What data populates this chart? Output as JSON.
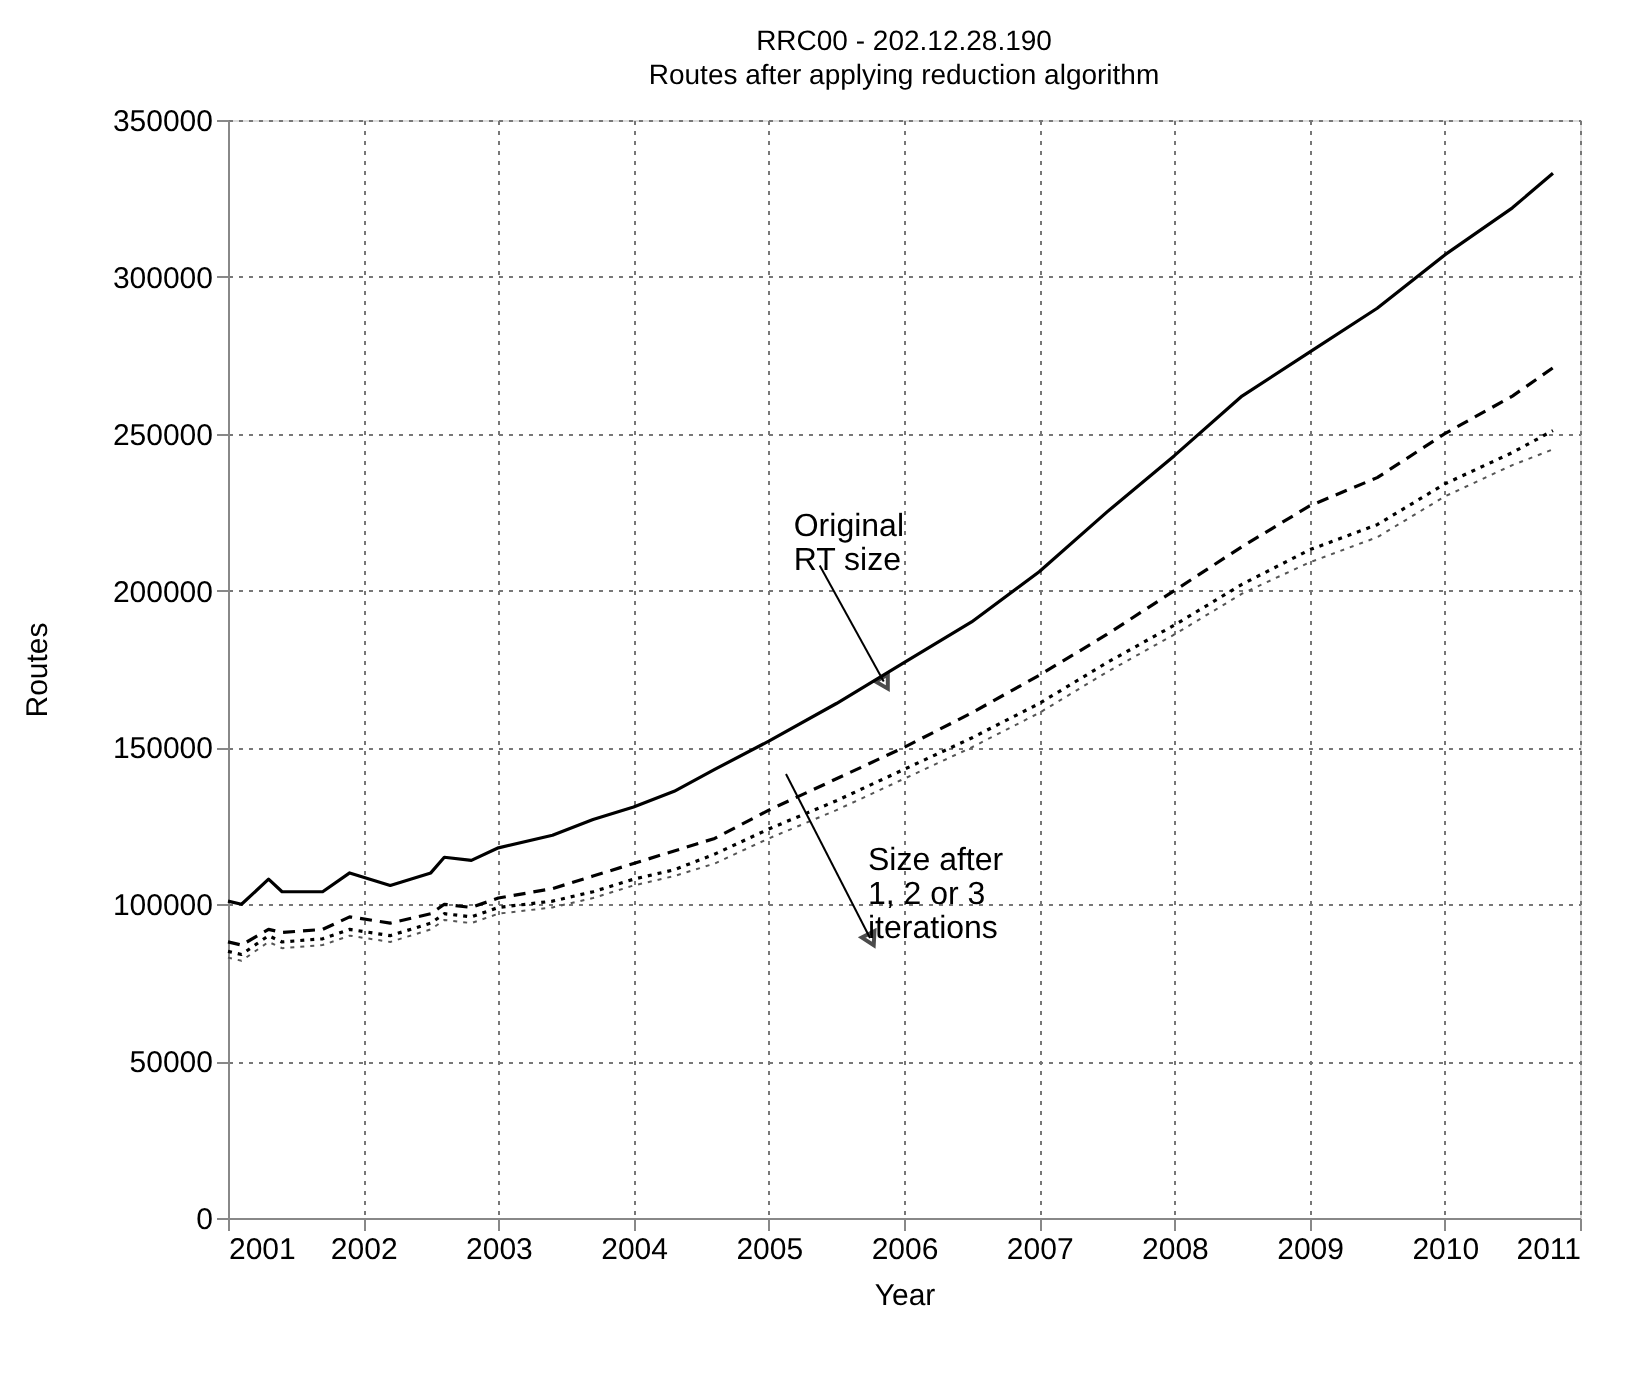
{
  "chart_data": {
    "type": "line",
    "title": "RRC00 - 202.12.28.190",
    "subtitle": "Routes after applying reduction algorithm",
    "xlabel": "Year",
    "ylabel": "Routes",
    "xlim": [
      2001,
      2011
    ],
    "xticks": [
      2001,
      2002,
      2003,
      2004,
      2005,
      2006,
      2007,
      2008,
      2009,
      2010,
      2011
    ],
    "ylim": [
      0,
      350000
    ],
    "yticks": [
      0,
      50000,
      100000,
      150000,
      200000,
      250000,
      300000,
      350000
    ],
    "grid": true,
    "marker": "none",
    "x": [
      2001,
      2001.1,
      2001.3,
      2001.4,
      2001.7,
      2001.9,
      2002.2,
      2002.5,
      2002.6,
      2002.8,
      2003,
      2003.4,
      2003.7,
      2004,
      2004.3,
      2004.6,
      2005,
      2005.5,
      2006,
      2006.5,
      2007,
      2007.5,
      2008,
      2008.5,
      2009,
      2009.5,
      2010,
      2010.5,
      2010.8
    ],
    "series": [
      {
        "color": "#000000",
        "line_style": "solid",
        "values": [
          101000,
          100000,
          108000,
          104000,
          104000,
          110000,
          106000,
          110000,
          115000,
          114000,
          118000,
          122000,
          127000,
          131000,
          136000,
          143000,
          152000,
          164000,
          177000,
          190000,
          206000,
          225000,
          243000,
          262000,
          276000,
          290000,
          307000,
          322000,
          333000
        ]
      },
      {
        "color": "#000000",
        "line_style": "dashed",
        "values": [
          88000,
          87000,
          92000,
          91000,
          92000,
          96000,
          94000,
          97000,
          100000,
          99000,
          102000,
          105000,
          109000,
          113000,
          117000,
          121000,
          130000,
          140000,
          150000,
          161000,
          173000,
          186000,
          200000,
          214000,
          227000,
          236000,
          250000,
          262000,
          271000
        ]
      },
      {
        "color": "#000000",
        "line_style": "dotted",
        "values": [
          85000,
          84000,
          90000,
          88000,
          89000,
          92000,
          90000,
          94000,
          97000,
          96000,
          99000,
          101000,
          104000,
          108000,
          111000,
          116000,
          124000,
          133000,
          143000,
          153000,
          164000,
          177000,
          189000,
          202000,
          213000,
          221000,
          234000,
          244000,
          251000
        ]
      },
      {
        "color": "#555555",
        "line_style": "dotted",
        "values": [
          83000,
          82000,
          88000,
          86000,
          87000,
          90000,
          88000,
          92000,
          95000,
          94000,
          97000,
          99000,
          102000,
          106000,
          109000,
          113000,
          121000,
          130000,
          140000,
          150000,
          161000,
          174000,
          186000,
          199000,
          209000,
          217000,
          230000,
          240000,
          245000
        ]
      }
    ],
    "annotations": [
      {
        "text": "Original\nRT size",
        "x": 2005.85,
        "y": 171000
      },
      "Size after\n1, 2 or 3\niterations"
    ]
  }
}
